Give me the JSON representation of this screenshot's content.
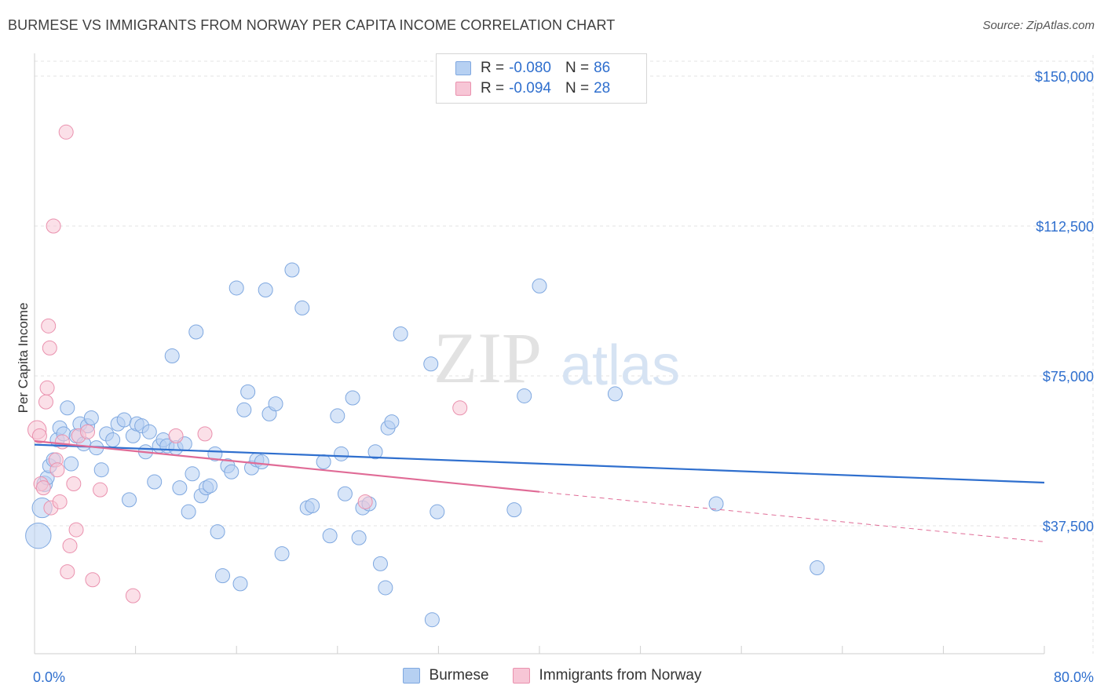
{
  "header": {
    "title": "BURMESE VS IMMIGRANTS FROM NORWAY PER CAPITA INCOME CORRELATION CHART",
    "source": "Source: ZipAtlas.com"
  },
  "watermark": {
    "zip": "ZIP",
    "atlas": "atlas"
  },
  "legend": {
    "r_label": "R =",
    "n_label": "N =",
    "burmese": {
      "r": "-0.080",
      "n": "86"
    },
    "norway": {
      "r": "-0.094",
      "n": "28"
    }
  },
  "colors": {
    "blue_fill": "#b6d0f2",
    "blue_stroke": "#7fa8e0",
    "blue_line": "#2f6fce",
    "pink_fill": "#f7c6d6",
    "pink_stroke": "#ea91ae",
    "pink_line": "#e06b96",
    "axis_label": "#2f6fce",
    "grid": "#e3e3e3"
  },
  "chart_data": {
    "type": "scatter",
    "title": "BURMESE VS IMMIGRANTS FROM NORWAY PER CAPITA INCOME CORRELATION CHART",
    "xlabel": "",
    "ylabel": "Per Capita Income",
    "xlim": [
      0,
      80
    ],
    "ylim": [
      0,
      155000
    ],
    "x_tick_labels": [
      "0.0%",
      "80.0%"
    ],
    "y_ticks": [
      37500,
      75000,
      112500,
      150000
    ],
    "y_tick_labels": [
      "$37,500",
      "$75,000",
      "$112,500",
      "$150,000"
    ],
    "series": [
      {
        "name": "Burmese",
        "r": -0.08,
        "n": 86,
        "trend": {
          "x0": 0,
          "y0": 57800,
          "x1": 80,
          "y1": 48300
        },
        "points": [
          [
            0.3,
            35000,
            1.8
          ],
          [
            0.6,
            42000,
            1.4
          ],
          [
            0.8,
            48000,
            1.1
          ],
          [
            1.0,
            49500,
            1.0
          ],
          [
            1.2,
            52500,
            1.0
          ],
          [
            1.5,
            54000,
            1.0
          ],
          [
            1.8,
            59000,
            1.0
          ],
          [
            2.0,
            62000,
            1.0
          ],
          [
            2.3,
            60500,
            1.0
          ],
          [
            2.6,
            67000,
            1.0
          ],
          [
            2.9,
            53000,
            1.0
          ],
          [
            3.3,
            60000,
            1.0
          ],
          [
            3.6,
            63000,
            1.0
          ],
          [
            3.9,
            58000,
            1.0
          ],
          [
            4.2,
            62500,
            1.0
          ],
          [
            4.5,
            64500,
            1.0
          ],
          [
            4.9,
            57000,
            1.0
          ],
          [
            5.3,
            51500,
            1.0
          ],
          [
            5.7,
            60500,
            1.0
          ],
          [
            6.2,
            59000,
            1.0
          ],
          [
            6.6,
            63000,
            1.0
          ],
          [
            7.1,
            64000,
            1.0
          ],
          [
            7.5,
            44000,
            1.0
          ],
          [
            7.8,
            60000,
            1.0
          ],
          [
            8.1,
            63000,
            1.0
          ],
          [
            8.5,
            62500,
            1.0
          ],
          [
            8.8,
            56000,
            1.0
          ],
          [
            9.1,
            61000,
            1.0
          ],
          [
            9.5,
            48500,
            1.0
          ],
          [
            9.9,
            57500,
            1.0
          ],
          [
            10.2,
            59000,
            1.0
          ],
          [
            10.5,
            57500,
            1.0
          ],
          [
            10.9,
            80000,
            1.0
          ],
          [
            11.2,
            57000,
            1.0
          ],
          [
            11.5,
            47000,
            1.0
          ],
          [
            11.9,
            58000,
            1.0
          ],
          [
            12.2,
            41000,
            1.0
          ],
          [
            12.5,
            50500,
            1.0
          ],
          [
            12.8,
            86000,
            1.0
          ],
          [
            13.2,
            45000,
            1.0
          ],
          [
            13.6,
            47000,
            1.0
          ],
          [
            13.9,
            47500,
            1.0
          ],
          [
            14.3,
            55500,
            1.0
          ],
          [
            14.5,
            36000,
            1.0
          ],
          [
            14.9,
            25000,
            1.0
          ],
          [
            15.3,
            52500,
            1.0
          ],
          [
            15.6,
            51000,
            1.0
          ],
          [
            16.0,
            97000,
            1.0
          ],
          [
            16.3,
            23000,
            1.0
          ],
          [
            16.6,
            66500,
            1.0
          ],
          [
            16.9,
            71000,
            1.0
          ],
          [
            17.2,
            52000,
            1.0
          ],
          [
            17.6,
            54000,
            1.0
          ],
          [
            18.0,
            53500,
            1.0
          ],
          [
            18.3,
            96500,
            1.0
          ],
          [
            18.6,
            65500,
            1.0
          ],
          [
            19.1,
            68000,
            1.0
          ],
          [
            19.6,
            30500,
            1.0
          ],
          [
            20.4,
            101500,
            1.0
          ],
          [
            21.2,
            92000,
            1.0
          ],
          [
            21.6,
            42000,
            1.0
          ],
          [
            22.0,
            42500,
            1.0
          ],
          [
            22.9,
            53500,
            1.0
          ],
          [
            23.4,
            35000,
            1.0
          ],
          [
            24.0,
            65000,
            1.0
          ],
          [
            24.3,
            55500,
            1.0
          ],
          [
            24.6,
            45500,
            1.0
          ],
          [
            25.2,
            69500,
            1.0
          ],
          [
            25.7,
            34500,
            1.0
          ],
          [
            26.0,
            42000,
            1.0
          ],
          [
            26.5,
            43000,
            1.0
          ],
          [
            27.0,
            56000,
            1.0
          ],
          [
            27.4,
            28000,
            1.0
          ],
          [
            27.8,
            22000,
            1.0
          ],
          [
            28.0,
            62000,
            1.0
          ],
          [
            28.3,
            63500,
            1.0
          ],
          [
            29.0,
            85500,
            1.0
          ],
          [
            31.4,
            78000,
            1.0
          ],
          [
            31.9,
            41000,
            1.0
          ],
          [
            31.5,
            14000,
            1.0
          ],
          [
            38.0,
            41500,
            1.0
          ],
          [
            38.8,
            70000,
            1.0
          ],
          [
            40.0,
            97500,
            1.0
          ],
          [
            46.0,
            70500,
            1.0
          ],
          [
            54.0,
            43000,
            1.0
          ],
          [
            62.0,
            27000,
            1.0
          ]
        ]
      },
      {
        "name": "Immigrants from Norway",
        "r": -0.094,
        "n": 28,
        "trend": {
          "x0": 0,
          "y0": 58700,
          "x1": 40,
          "y1": 46000
        },
        "trend_dashed": {
          "x0": 40,
          "y0": 46000,
          "x1": 80,
          "y1": 33500
        },
        "points": [
          [
            0.2,
            61500,
            1.3
          ],
          [
            0.4,
            60000,
            1.0
          ],
          [
            0.5,
            48000,
            1.0
          ],
          [
            0.7,
            47000,
            1.0
          ],
          [
            0.9,
            68500,
            1.0
          ],
          [
            1.0,
            72000,
            1.0
          ],
          [
            1.1,
            87500,
            1.0
          ],
          [
            1.2,
            82000,
            1.0
          ],
          [
            1.3,
            42000,
            1.0
          ],
          [
            1.5,
            112500,
            1.0
          ],
          [
            1.7,
            54000,
            1.0
          ],
          [
            1.8,
            51500,
            1.0
          ],
          [
            2.0,
            43500,
            1.0
          ],
          [
            2.2,
            58500,
            1.0
          ],
          [
            2.5,
            136000,
            1.0
          ],
          [
            2.6,
            26000,
            1.0
          ],
          [
            2.8,
            32500,
            1.0
          ],
          [
            3.1,
            48000,
            1.0
          ],
          [
            3.3,
            36500,
            1.0
          ],
          [
            3.5,
            60000,
            1.0
          ],
          [
            4.2,
            61000,
            1.0
          ],
          [
            4.6,
            24000,
            1.0
          ],
          [
            5.2,
            46500,
            1.0
          ],
          [
            7.8,
            20000,
            1.0
          ],
          [
            11.2,
            60000,
            1.0
          ],
          [
            13.5,
            60500,
            1.0
          ],
          [
            26.2,
            43500,
            1.0
          ],
          [
            33.7,
            67000,
            1.0
          ]
        ]
      }
    ]
  }
}
